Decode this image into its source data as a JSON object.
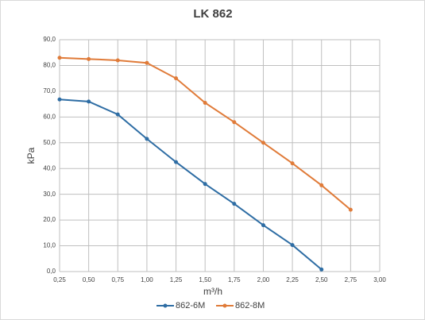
{
  "chart_data": {
    "type": "line",
    "title": "LK 862",
    "x_label": "m³/h",
    "y_label": "kPa",
    "series": [
      {
        "name": "862-6M",
        "color": "#2e6da4",
        "x": [
          0.25,
          0.5,
          0.75,
          1.0,
          1.25,
          1.5,
          1.75,
          2.0,
          2.25,
          2.5
        ],
        "values": [
          66.8,
          66,
          61,
          51.5,
          42.5,
          34,
          26.3,
          18,
          10.3,
          0.8
        ]
      },
      {
        "name": "862-8M",
        "color": "#e07b39",
        "x": [
          0.25,
          0.5,
          0.75,
          1.0,
          1.25,
          1.5,
          1.75,
          2.0,
          2.25,
          2.5,
          2.75
        ],
        "values": [
          83,
          82.5,
          82,
          81,
          75,
          65.5,
          58,
          50,
          42,
          33.5,
          24
        ]
      }
    ],
    "xlim": [
      0.25,
      3.0
    ],
    "xticks": [
      {
        "value": 0.25,
        "label": "0,25"
      },
      {
        "value": 0.5,
        "label": "0,50"
      },
      {
        "value": 0.75,
        "label": "0,75"
      },
      {
        "value": 1.0,
        "label": "1,00"
      },
      {
        "value": 1.25,
        "label": "1,25"
      },
      {
        "value": 1.5,
        "label": "1,50"
      },
      {
        "value": 1.75,
        "label": "1,75"
      },
      {
        "value": 2.0,
        "label": "2,00"
      },
      {
        "value": 2.25,
        "label": "2,25"
      },
      {
        "value": 2.5,
        "label": "2,50"
      },
      {
        "value": 2.75,
        "label": "2,75"
      },
      {
        "value": 3.0,
        "label": "3,00"
      }
    ],
    "ylim": [
      0,
      90
    ],
    "yticks": [
      {
        "value": 0,
        "label": "0,0"
      },
      {
        "value": 10,
        "label": "10,0"
      },
      {
        "value": 20,
        "label": "20,0"
      },
      {
        "value": 30,
        "label": "30,0"
      },
      {
        "value": 40,
        "label": "40,0"
      },
      {
        "value": 50,
        "label": "50,0"
      },
      {
        "value": 60,
        "label": "60,0"
      },
      {
        "value": 70,
        "label": "70,0"
      },
      {
        "value": 80,
        "label": "80,0"
      },
      {
        "value": 90,
        "label": "90,0"
      }
    ],
    "grid": true,
    "legend": "bottom"
  }
}
